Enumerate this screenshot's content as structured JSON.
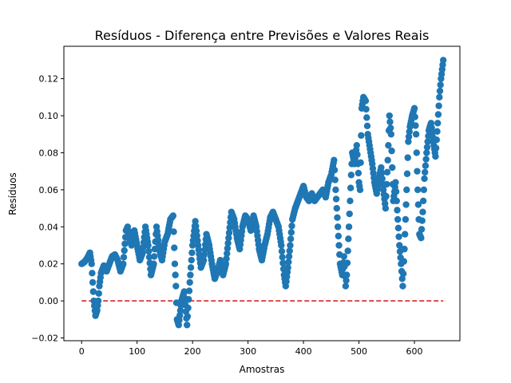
{
  "chart_data": {
    "type": "scatter",
    "title": "Resíduos - Diferença entre Previsões e Valores Reais",
    "xlabel": "Amostras",
    "ylabel": "Resíduos",
    "xlim": [
      -32,
      682
    ],
    "ylim": [
      -0.0215,
      0.1375
    ],
    "xticks": [
      0,
      100,
      200,
      300,
      400,
      500,
      600
    ],
    "yticks": [
      -0.02,
      0.0,
      0.02,
      0.04,
      0.06,
      0.08,
      0.1,
      0.12
    ],
    "ytick_labels": [
      "−0.02",
      "0.00",
      "0.02",
      "0.04",
      "0.06",
      "0.08",
      "0.10",
      "0.12"
    ],
    "grid": false,
    "marker_color": "#1f77b4",
    "reference_line": {
      "y": 0.0,
      "x_range": [
        0,
        652
      ],
      "color": "#d62728",
      "style": "dashed"
    },
    "series": [
      {
        "anchors": [
          [
            0,
            0.02
          ],
          [
            5,
            0.021
          ],
          [
            10,
            0.023
          ],
          [
            15,
            0.026
          ],
          [
            18,
            0.02
          ],
          [
            20,
            0.01
          ],
          [
            22,
            0.0
          ],
          [
            25,
            -0.008
          ],
          [
            28,
            -0.005
          ],
          [
            30,
            0.0
          ],
          [
            32,
            0.008
          ],
          [
            35,
            0.015
          ],
          [
            40,
            0.019
          ],
          [
            45,
            0.016
          ],
          [
            50,
            0.02
          ],
          [
            55,
            0.024
          ],
          [
            60,
            0.025
          ],
          [
            65,
            0.022
          ],
          [
            70,
            0.016
          ],
          [
            75,
            0.02
          ],
          [
            80,
            0.038
          ],
          [
            83,
            0.04
          ],
          [
            86,
            0.034
          ],
          [
            90,
            0.03
          ],
          [
            95,
            0.038
          ],
          [
            100,
            0.03
          ],
          [
            105,
            0.022
          ],
          [
            110,
            0.026
          ],
          [
            115,
            0.04
          ],
          [
            120,
            0.03
          ],
          [
            125,
            0.014
          ],
          [
            130,
            0.02
          ],
          [
            135,
            0.04
          ],
          [
            140,
            0.028
          ],
          [
            145,
            0.022
          ],
          [
            150,
            0.032
          ],
          [
            155,
            0.036
          ],
          [
            160,
            0.044
          ],
          [
            165,
            0.046
          ],
          [
            168,
            0.02
          ],
          [
            170,
            0.008
          ],
          [
            172,
            -0.01
          ],
          [
            175,
            -0.013
          ],
          [
            180,
            0.0
          ],
          [
            185,
            0.005
          ],
          [
            190,
            -0.013
          ],
          [
            195,
            0.01
          ],
          [
            200,
            0.03
          ],
          [
            205,
            0.043
          ],
          [
            210,
            0.03
          ],
          [
            215,
            0.018
          ],
          [
            220,
            0.022
          ],
          [
            225,
            0.036
          ],
          [
            230,
            0.03
          ],
          [
            235,
            0.02
          ],
          [
            240,
            0.012
          ],
          [
            245,
            0.016
          ],
          [
            250,
            0.022
          ],
          [
            255,
            0.014
          ],
          [
            260,
            0.02
          ],
          [
            265,
            0.034
          ],
          [
            270,
            0.048
          ],
          [
            275,
            0.044
          ],
          [
            280,
            0.034
          ],
          [
            285,
            0.028
          ],
          [
            290,
            0.04
          ],
          [
            295,
            0.046
          ],
          [
            300,
            0.044
          ],
          [
            305,
            0.038
          ],
          [
            310,
            0.046
          ],
          [
            315,
            0.04
          ],
          [
            320,
            0.028
          ],
          [
            325,
            0.022
          ],
          [
            330,
            0.03
          ],
          [
            335,
            0.036
          ],
          [
            340,
            0.045
          ],
          [
            345,
            0.048
          ],
          [
            350,
            0.044
          ],
          [
            355,
            0.04
          ],
          [
            360,
            0.03
          ],
          [
            365,
            0.014
          ],
          [
            368,
            0.008
          ],
          [
            372,
            0.018
          ],
          [
            376,
            0.03
          ],
          [
            380,
            0.044
          ],
          [
            385,
            0.05
          ],
          [
            390,
            0.054
          ],
          [
            395,
            0.058
          ],
          [
            400,
            0.062
          ],
          [
            405,
            0.056
          ],
          [
            410,
            0.054
          ],
          [
            415,
            0.058
          ],
          [
            420,
            0.054
          ],
          [
            425,
            0.056
          ],
          [
            430,
            0.058
          ],
          [
            435,
            0.06
          ],
          [
            440,
            0.056
          ],
          [
            445,
            0.064
          ],
          [
            450,
            0.068
          ],
          [
            455,
            0.076
          ],
          [
            458,
            0.06
          ],
          [
            462,
            0.04
          ],
          [
            466,
            0.02
          ],
          [
            470,
            0.014
          ],
          [
            473,
            0.024
          ],
          [
            476,
            0.008
          ],
          [
            478,
            0.014
          ],
          [
            482,
            0.04
          ],
          [
            486,
            0.068
          ],
          [
            488,
            0.08
          ],
          [
            492,
            0.074
          ],
          [
            496,
            0.084
          ],
          [
            500,
            0.064
          ],
          [
            502,
            0.06
          ],
          [
            505,
            0.104
          ],
          [
            508,
            0.11
          ],
          [
            512,
            0.108
          ],
          [
            516,
            0.09
          ],
          [
            520,
            0.082
          ],
          [
            524,
            0.074
          ],
          [
            528,
            0.064
          ],
          [
            532,
            0.058
          ],
          [
            536,
            0.066
          ],
          [
            540,
            0.072
          ],
          [
            544,
            0.06
          ],
          [
            548,
            0.05
          ],
          [
            552,
            0.076
          ],
          [
            555,
            0.1
          ],
          [
            558,
            0.09
          ],
          [
            562,
            0.054
          ],
          [
            566,
            0.064
          ],
          [
            570,
            0.044
          ],
          [
            573,
            0.03
          ],
          [
            576,
            0.02
          ],
          [
            579,
            0.008
          ],
          [
            582,
            0.028
          ],
          [
            586,
            0.06
          ],
          [
            589,
            0.086
          ],
          [
            592,
            0.094
          ],
          [
            596,
            0.1
          ],
          [
            600,
            0.104
          ],
          [
            603,
            0.09
          ],
          [
            606,
            0.06
          ],
          [
            609,
            0.036
          ],
          [
            612,
            0.034
          ],
          [
            615,
            0.048
          ],
          [
            618,
            0.066
          ],
          [
            622,
            0.08
          ],
          [
            626,
            0.092
          ],
          [
            630,
            0.096
          ],
          [
            634,
            0.086
          ],
          [
            638,
            0.078
          ],
          [
            642,
            0.096
          ],
          [
            645,
            0.11
          ],
          [
            648,
            0.12
          ],
          [
            652,
            0.13
          ]
        ]
      }
    ]
  }
}
